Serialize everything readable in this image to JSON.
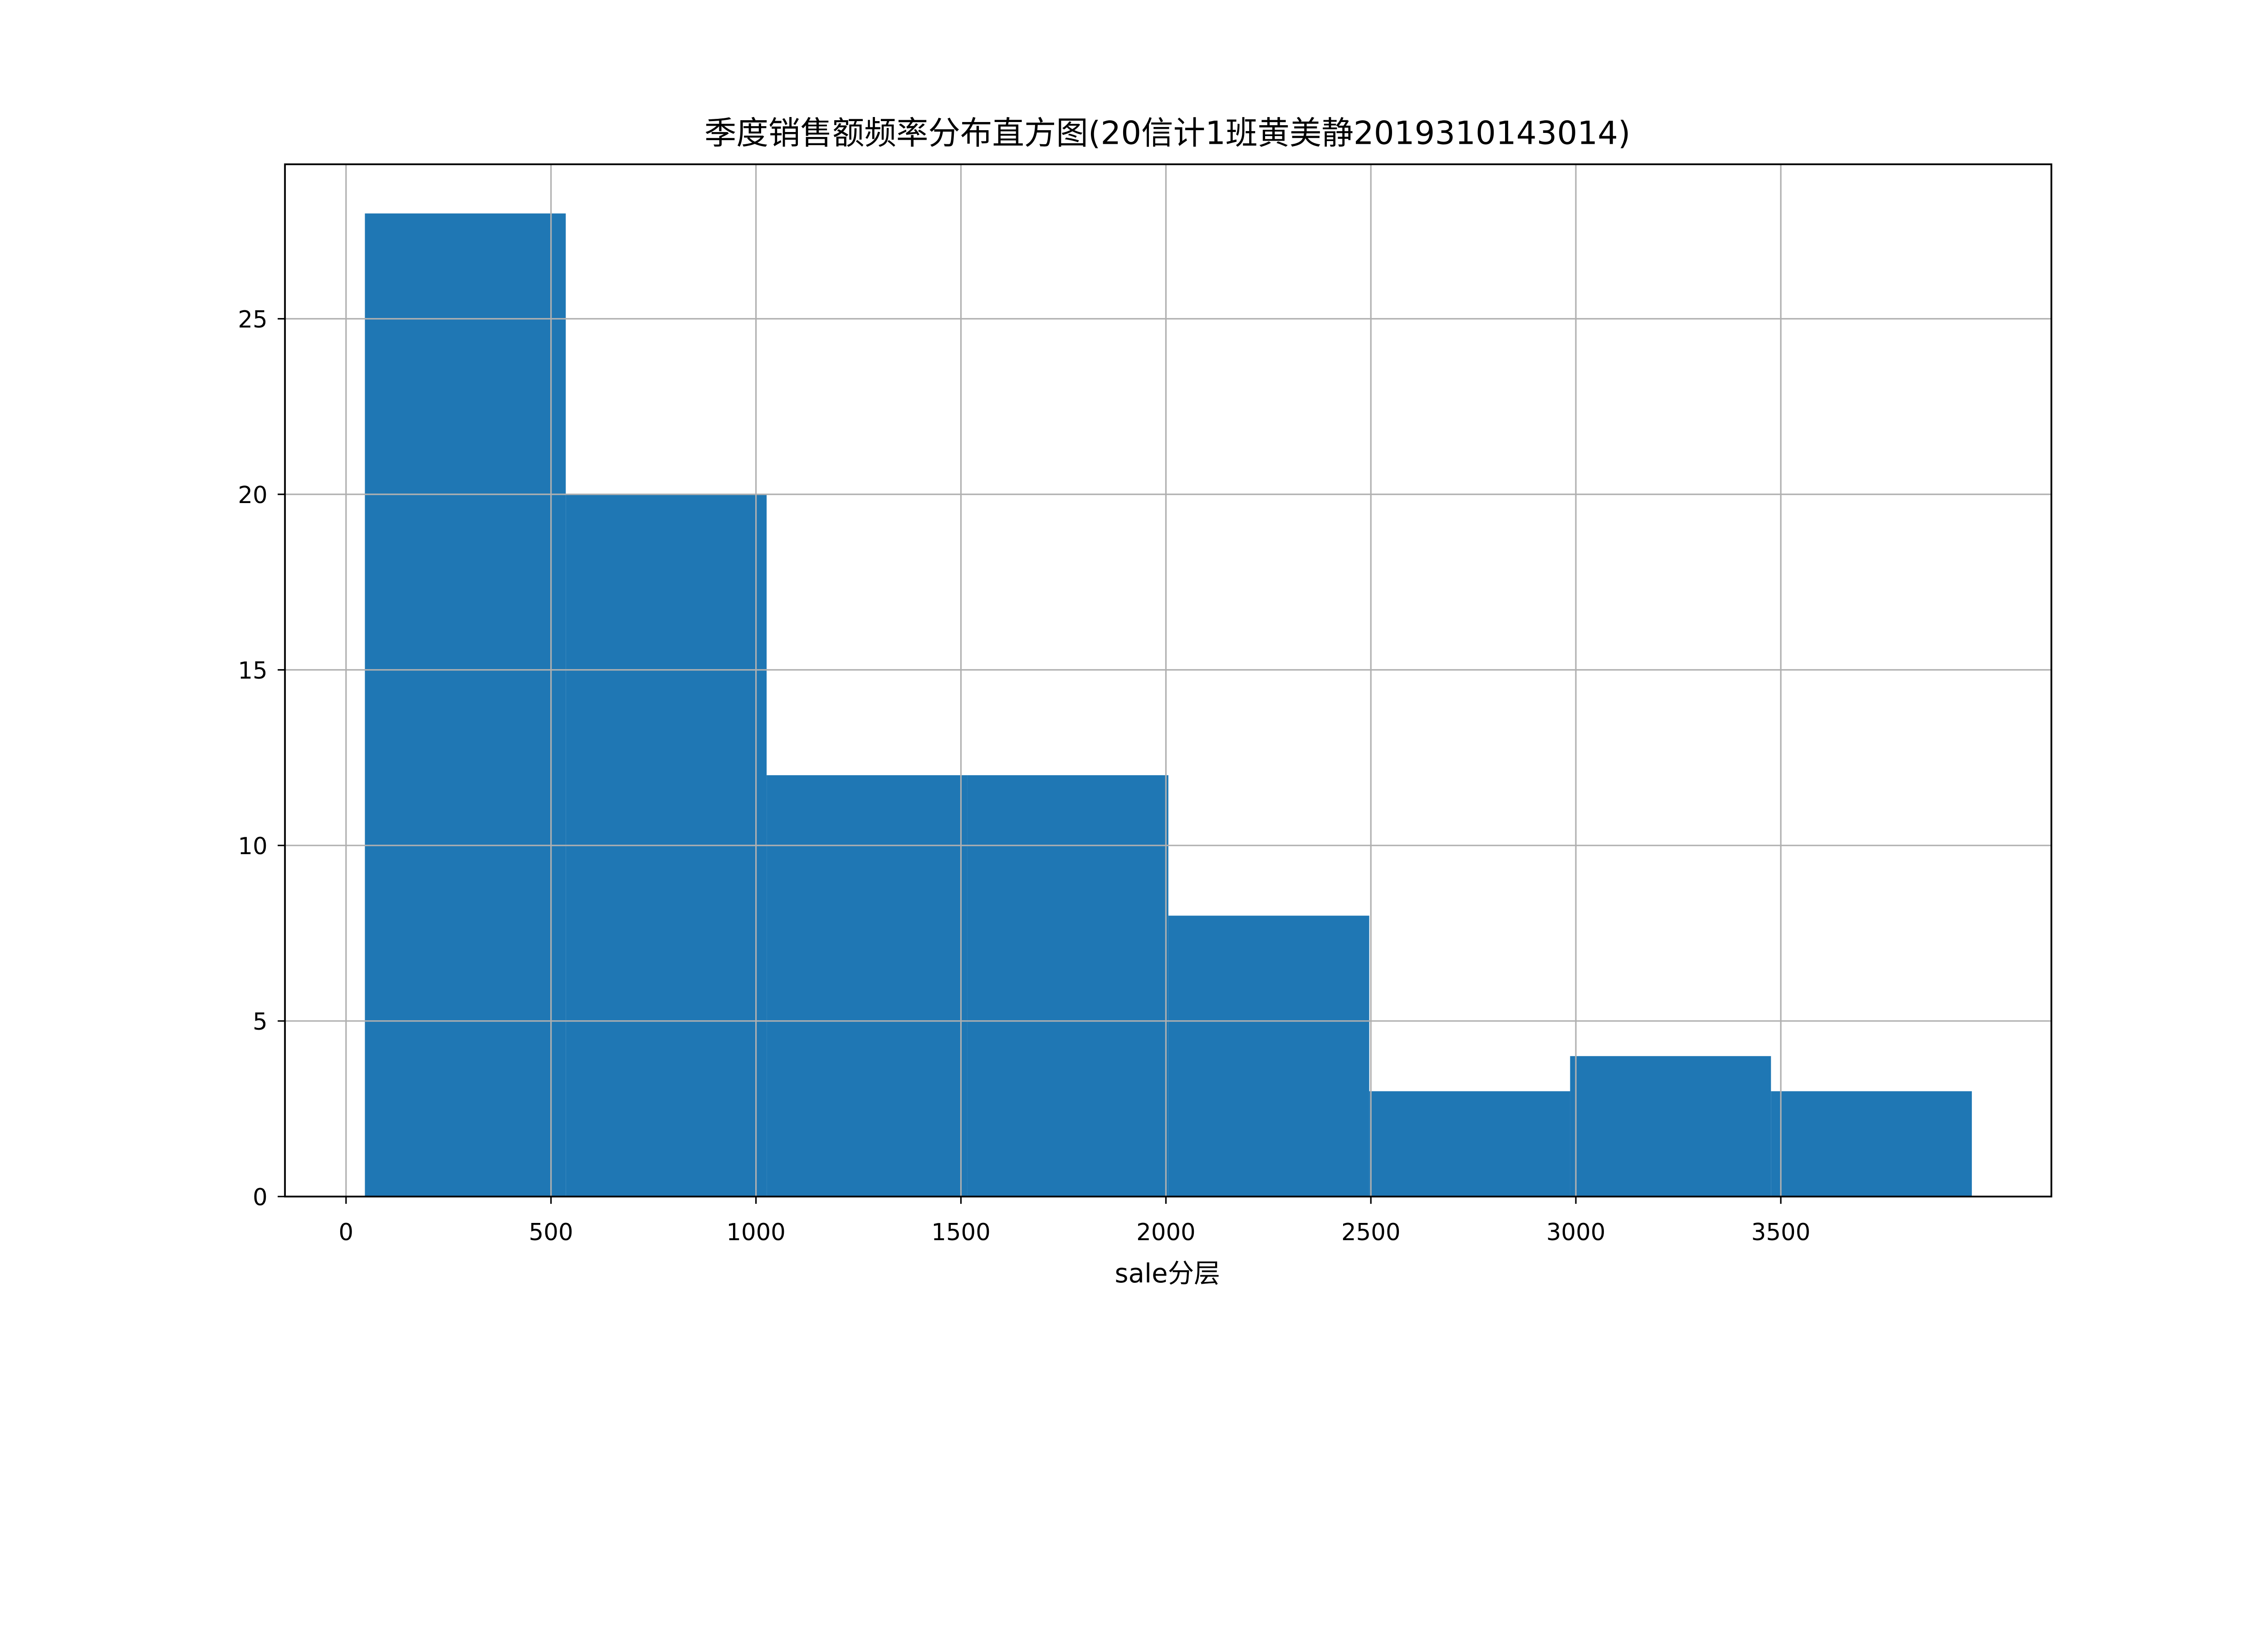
{
  "chart_data": {
    "type": "bar",
    "subtype": "histogram",
    "title": "季度销售额频率分布直方图(20信计1班黄美静2019310143014)",
    "xlabel": "sale分层",
    "ylabel": "",
    "bin_edges": [
      46,
      536,
      1026,
      1516,
      2006,
      2496,
      2986,
      3476,
      3966
    ],
    "values": [
      28,
      20,
      12,
      12,
      8,
      3,
      4,
      3
    ],
    "xlim": [
      -149,
      4160
    ],
    "ylim": [
      0,
      29.4
    ],
    "xticks": [
      0,
      500,
      1000,
      1500,
      2000,
      2500,
      3000,
      3500
    ],
    "xtick_labels": [
      "0",
      "500",
      "1000",
      "1500",
      "2000",
      "2500",
      "3000",
      "3500"
    ],
    "yticks": [
      0,
      5,
      10,
      15,
      20,
      25
    ],
    "ytick_labels": [
      "0",
      "5",
      "10",
      "15",
      "20",
      "25"
    ],
    "grid": true,
    "legend": "none",
    "colors": {
      "bar": "#1f77b4",
      "grid": "#b0b0b0",
      "axes": "#000000"
    }
  }
}
